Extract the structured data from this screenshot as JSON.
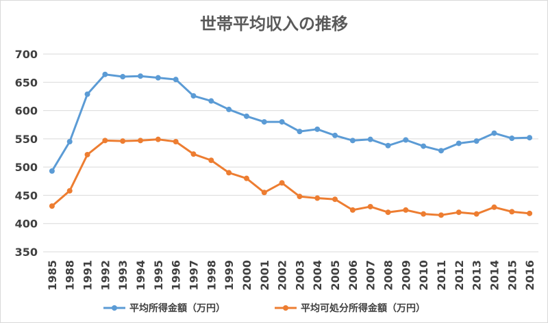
{
  "chart_data": {
    "type": "line",
    "title": "世帯平均収入の推移",
    "xlabel": "",
    "ylabel": "",
    "ylim": [
      350,
      700
    ],
    "yticks": [
      350,
      400,
      450,
      500,
      550,
      600,
      650,
      700
    ],
    "grid": true,
    "legend_position": "bottom",
    "categories": [
      "1985",
      "1988",
      "1991",
      "1992",
      "1993",
      "1994",
      "1995",
      "1996",
      "1997",
      "1998",
      "1999",
      "2000",
      "2001",
      "2002",
      "2003",
      "2004",
      "2005",
      "2006",
      "2007",
      "2008",
      "2009",
      "2010",
      "2011",
      "2012",
      "2013",
      "2014",
      "2015",
      "2016"
    ],
    "series": [
      {
        "name": "平均所得金額（万円）",
        "color": "#5b9bd5",
        "values": [
          493,
          545,
          629,
          664,
          660,
          661,
          658,
          655,
          626,
          617,
          602,
          590,
          580,
          580,
          563,
          567,
          556,
          547,
          549,
          538,
          548,
          537,
          529,
          542,
          546,
          560,
          551,
          552
        ]
      },
      {
        "name": "平均可処分所得金額（万円）",
        "color": "#ed7d31",
        "values": [
          431,
          458,
          522,
          547,
          546,
          547,
          549,
          545,
          523,
          512,
          490,
          480,
          455,
          472,
          448,
          445,
          443,
          424,
          430,
          420,
          424,
          417,
          415,
          420,
          417,
          429,
          421,
          418
        ]
      }
    ]
  }
}
